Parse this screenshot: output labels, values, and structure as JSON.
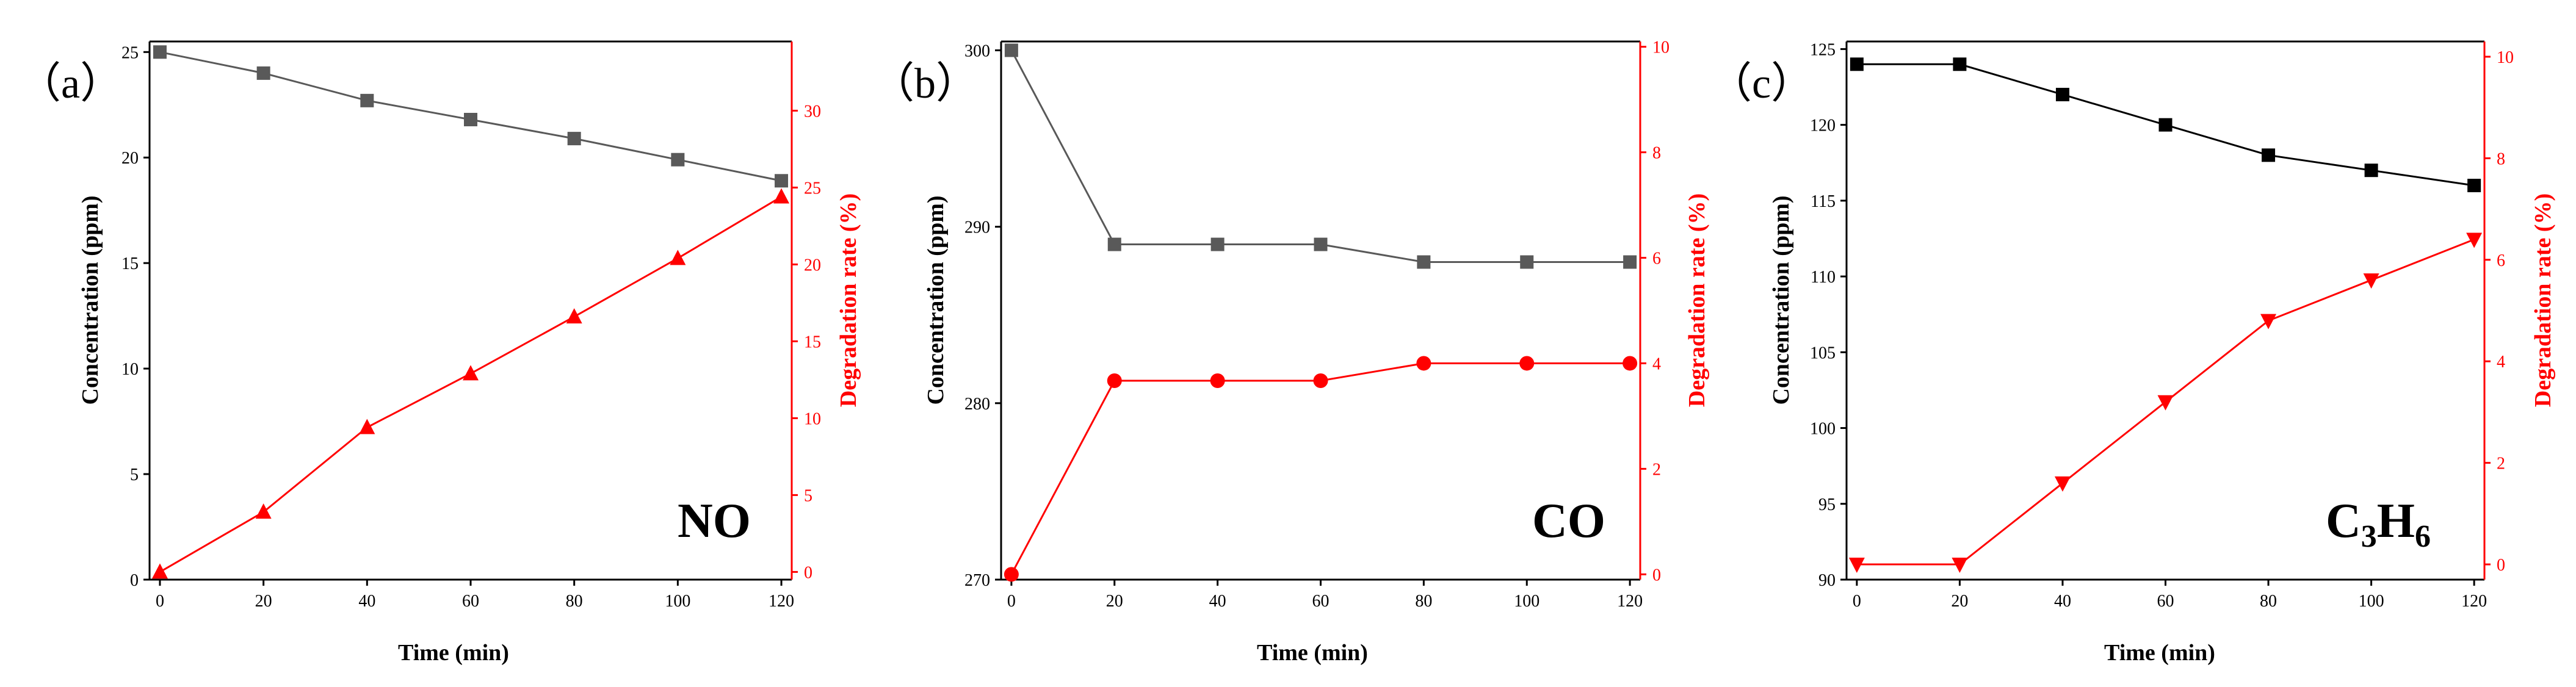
{
  "chart_data": [
    {
      "type": "line",
      "panel_label": "（a）",
      "gas_label": "NO",
      "xlabel": "Time (min)",
      "ylabel": "Concentration (ppm)",
      "y2label": "Degradation rate (%)",
      "x": [
        0,
        20,
        40,
        60,
        80,
        100,
        120
      ],
      "xlim": [
        -2,
        122
      ],
      "ylim": [
        0,
        25.5
      ],
      "y2lim": [
        -0.5,
        34.5
      ],
      "xticks": [
        0,
        20,
        40,
        60,
        80,
        100,
        120
      ],
      "yticks": [
        0,
        5,
        10,
        15,
        20,
        25
      ],
      "y2ticks": [
        0,
        5,
        10,
        15,
        20,
        25,
        30
      ],
      "series": [
        {
          "name": "Concentration",
          "axis": "left",
          "color": "#595959",
          "marker": "square",
          "values": [
            25.0,
            24.0,
            22.7,
            21.8,
            20.9,
            19.9,
            18.9
          ]
        },
        {
          "name": "Degradation rate",
          "axis": "right",
          "color": "#ff0000",
          "marker": "triangle-up",
          "values": [
            0.0,
            3.9,
            9.4,
            12.9,
            16.6,
            20.4,
            24.4
          ]
        }
      ]
    },
    {
      "type": "line",
      "panel_label": "（b）",
      "gas_label": "CO",
      "xlabel": "Time (min)",
      "ylabel": "Concentration (ppm)",
      "y2label": "Degradation rate (%)",
      "x": [
        0,
        20,
        40,
        60,
        80,
        100,
        120
      ],
      "xlim": [
        -2,
        122
      ],
      "ylim": [
        270,
        300.5
      ],
      "y2lim": [
        -0.1,
        10.1
      ],
      "xticks": [
        0,
        20,
        40,
        60,
        80,
        100,
        120
      ],
      "yticks": [
        270,
        280,
        290,
        300
      ],
      "y2ticks": [
        0,
        2,
        4,
        6,
        8,
        10
      ],
      "series": [
        {
          "name": "Concentration",
          "axis": "left",
          "color": "#595959",
          "marker": "square",
          "values": [
            300,
            289,
            289,
            289,
            288,
            288,
            288
          ]
        },
        {
          "name": "Degradation rate",
          "axis": "right",
          "color": "#ff0000",
          "marker": "circle",
          "values": [
            0.0,
            3.67,
            3.67,
            3.67,
            4.0,
            4.0,
            4.0
          ]
        }
      ]
    },
    {
      "type": "line",
      "panel_label": "（c）",
      "gas_label_main": "C",
      "gas_label_sub1": "3",
      "gas_label_mid": "H",
      "gas_label_sub2": "6",
      "xlabel": "Time (min)",
      "ylabel": "Concentration (ppm)",
      "y2label": "Degradation rate (%)",
      "x": [
        0,
        20,
        40,
        60,
        80,
        100,
        120
      ],
      "xlim": [
        -2,
        122
      ],
      "ylim": [
        90,
        125.5
      ],
      "y2lim": [
        -0.3,
        10.3
      ],
      "xticks": [
        0,
        20,
        40,
        60,
        80,
        100,
        120
      ],
      "yticks": [
        90,
        95,
        100,
        105,
        110,
        115,
        120,
        125
      ],
      "y2ticks": [
        0,
        2,
        4,
        6,
        8,
        10
      ],
      "series": [
        {
          "name": "Concentration",
          "axis": "left",
          "color": "#000000",
          "marker": "square",
          "values": [
            124,
            124,
            122,
            120,
            118,
            117,
            116
          ]
        },
        {
          "name": "Degradation rate",
          "axis": "right",
          "color": "#ff0000",
          "marker": "triangle-down",
          "values": [
            0.0,
            0.0,
            1.6,
            3.2,
            4.8,
            5.6,
            6.4
          ]
        }
      ]
    }
  ]
}
